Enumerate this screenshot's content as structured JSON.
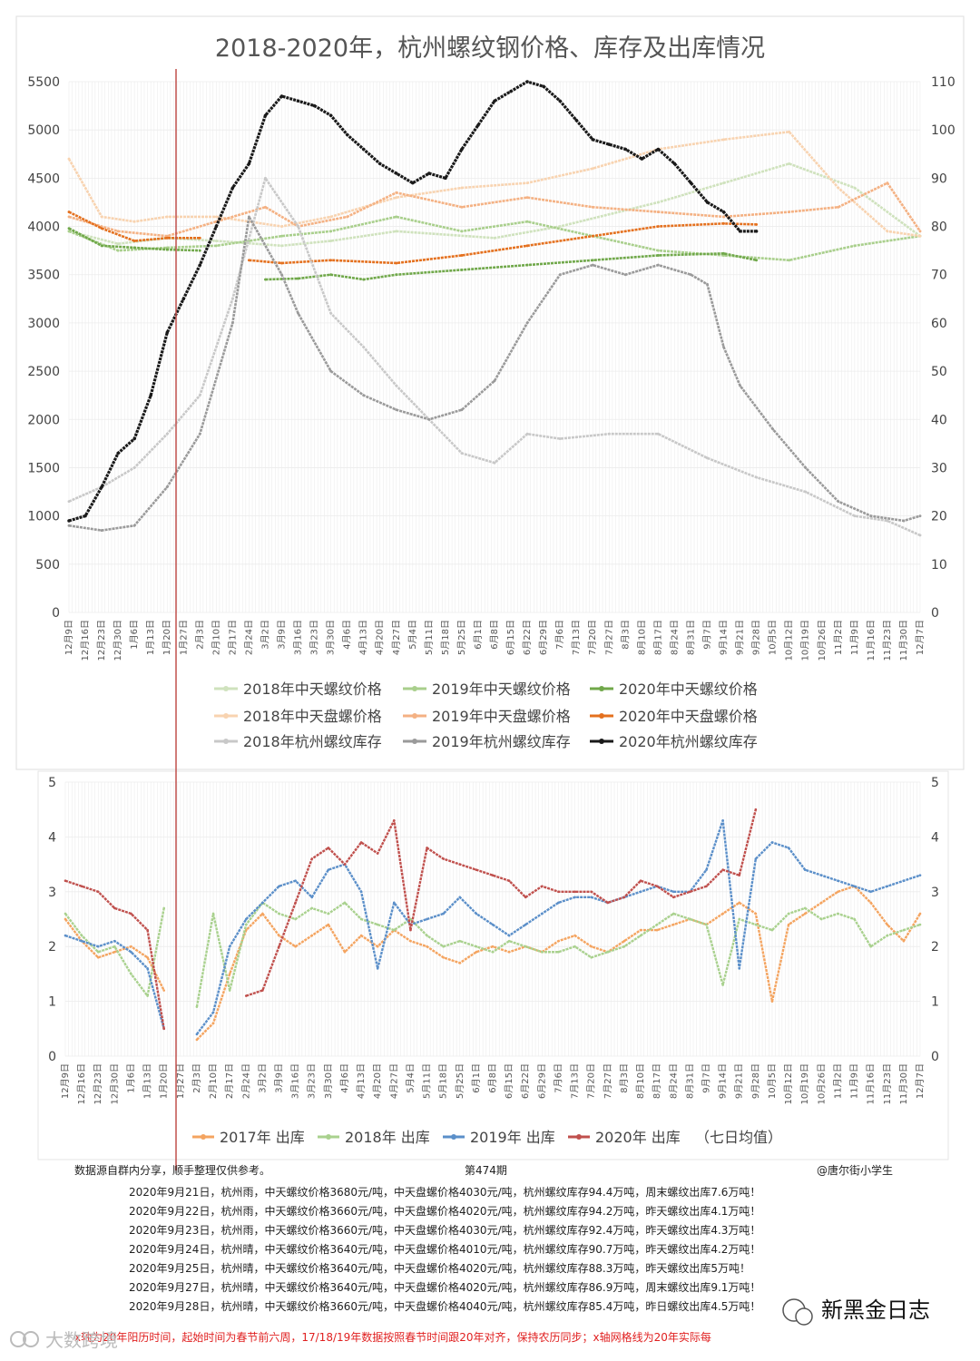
{
  "chart_data": [
    {
      "type": "line",
      "title": "2018-2020年，杭州螺纹钢价格、库存及出库情况",
      "x_tick_labels": [
        "12月9日",
        "12月16日",
        "12月23日",
        "12月30日",
        "1月6日",
        "1月13日",
        "1月20日",
        "1月27日",
        "2月3日",
        "2月10日",
        "2月17日",
        "2月24日",
        "3月2日",
        "3月9日",
        "3月16日",
        "3月23日",
        "3月30日",
        "4月6日",
        "4月13日",
        "4月20日",
        "4月27日",
        "5月4日",
        "5月11日",
        "5月18日",
        "5月25日",
        "6月1日",
        "6月8日",
        "6月15日",
        "6月22日",
        "6月29日",
        "7月6日",
        "7月13日",
        "7月20日",
        "7月27日",
        "8月3日",
        "8月10日",
        "8月17日",
        "8月24日",
        "8月31日",
        "9月7日",
        "9月14日",
        "9月21日",
        "9月28日",
        "10月5日",
        "10月12日",
        "10月19日",
        "10月26日",
        "11月2日",
        "11月9日",
        "11月16日",
        "11月23日",
        "11月30日",
        "12月7日"
      ],
      "ylim_left": [
        0,
        5500
      ],
      "y_ticks_left": [
        "0",
        "500",
        "1000",
        "1500",
        "2000",
        "2500",
        "3000",
        "3500",
        "4000",
        "4500",
        "5000",
        "5500"
      ],
      "ylim_right": [
        0,
        110
      ],
      "y_ticks_right": [
        "0",
        "10",
        "20",
        "30",
        "40",
        "50",
        "60",
        "70",
        "80",
        "90",
        "100",
        "110"
      ],
      "grid": true,
      "legend_position": "bottom",
      "series": [
        {
          "name": "2018年中天螺纹价格",
          "color": "#cfe2bd",
          "axis": "left",
          "x": [
            0,
            3,
            6,
            9,
            13,
            16,
            20,
            26,
            30,
            36,
            40,
            44,
            48,
            52
          ],
          "values": [
            3950,
            3820,
            3880,
            3850,
            3800,
            3850,
            3950,
            3880,
            4000,
            4250,
            4450,
            4650,
            4400,
            3900
          ]
        },
        {
          "name": "2019年中天螺纹价格",
          "color": "#a9cf8c",
          "axis": "left",
          "x": [
            0,
            3,
            6,
            9,
            11,
            13,
            16,
            20,
            24,
            28,
            32,
            36,
            40,
            44,
            48,
            52
          ],
          "values": [
            3950,
            3750,
            3780,
            3800,
            3850,
            3900,
            3950,
            4100,
            3950,
            4050,
            3900,
            3750,
            3700,
            3650,
            3800,
            3900
          ]
        },
        {
          "name": "2020年中天螺纹价格",
          "color": "#70a84a",
          "axis": "left",
          "x": [
            0,
            2,
            4,
            6,
            8,
            10,
            12,
            14,
            16,
            18,
            20,
            24,
            28,
            32,
            36,
            40,
            42
          ],
          "values": [
            3980,
            3800,
            3780,
            3760,
            3750,
            null,
            3450,
            3460,
            3500,
            3450,
            3500,
            3550,
            3600,
            3650,
            3700,
            3720,
            3650
          ]
        },
        {
          "name": "2018年中天盘螺价格",
          "color": "#f8d3b0",
          "axis": "left",
          "x": [
            0,
            2,
            4,
            6,
            9,
            13,
            16,
            20,
            24,
            28,
            32,
            36,
            40,
            44,
            47,
            50,
            52
          ],
          "values": [
            4700,
            4100,
            4050,
            4100,
            4100,
            4000,
            4100,
            4300,
            4400,
            4450,
            4600,
            4800,
            4900,
            4980,
            4400,
            3950,
            3900
          ]
        },
        {
          "name": "2019年中天盘螺价格",
          "color": "#f4b183",
          "axis": "left",
          "x": [
            0,
            3,
            6,
            9,
            12,
            14,
            17,
            20,
            24,
            28,
            32,
            36,
            40,
            44,
            47,
            50,
            52
          ],
          "values": [
            4100,
            3950,
            3900,
            4050,
            4200,
            4000,
            4100,
            4350,
            4200,
            4300,
            4200,
            4150,
            4100,
            4150,
            4200,
            4450,
            3950
          ]
        },
        {
          "name": "2020年中天盘螺价格",
          "color": "#e4701e",
          "axis": "left",
          "x": [
            0,
            2,
            4,
            6,
            8,
            10,
            11,
            13,
            16,
            20,
            24,
            28,
            32,
            36,
            40,
            42
          ],
          "values": [
            4150,
            3980,
            3850,
            3880,
            3880,
            null,
            3650,
            3620,
            3650,
            3620,
            3700,
            3800,
            3900,
            4000,
            4030,
            4020
          ]
        },
        {
          "name": "2018年杭州螺纹库存",
          "color": "#c8c8c8",
          "axis": "right",
          "x": [
            0,
            2,
            4,
            6,
            8,
            10,
            12,
            14,
            16,
            18,
            20,
            22,
            24,
            26,
            28,
            30,
            33,
            36,
            39,
            42,
            45,
            48,
            50,
            52
          ],
          "values": [
            23,
            26,
            30,
            37,
            45,
            65,
            90,
            80,
            62,
            55,
            47,
            40,
            33,
            31,
            37,
            36,
            37,
            37,
            32,
            28,
            25,
            20,
            19,
            16
          ]
        },
        {
          "name": "2019年杭州螺纹库存",
          "color": "#9a9a9a",
          "axis": "right",
          "x": [
            0,
            2,
            4,
            6,
            8,
            10,
            11,
            13,
            14,
            16,
            18,
            20,
            22,
            24,
            26,
            28,
            30,
            32,
            34,
            36,
            38,
            39,
            40,
            41,
            43,
            45,
            47,
            49,
            51,
            52
          ],
          "values": [
            18,
            17,
            18,
            26,
            37,
            60,
            82,
            70,
            62,
            50,
            45,
            42,
            40,
            42,
            48,
            60,
            70,
            72,
            70,
            72,
            70,
            68,
            55,
            47,
            38,
            30,
            23,
            20,
            19,
            20
          ]
        },
        {
          "name": "2020年杭州螺纹库存",
          "color": "#1a1a1a",
          "axis": "right",
          "x": [
            0,
            1,
            2,
            3,
            4,
            5,
            6,
            7,
            8,
            9,
            10,
            11,
            12,
            13,
            14,
            15,
            16,
            17,
            18,
            19,
            20,
            21,
            22,
            23,
            24,
            25,
            26,
            27,
            28,
            29,
            30,
            31,
            32,
            33,
            34,
            35,
            36,
            37,
            38,
            39,
            40,
            41,
            42
          ],
          "values": [
            19,
            20,
            26,
            33,
            36,
            45,
            58,
            65,
            72,
            80,
            88,
            93,
            103,
            107,
            106,
            105,
            103,
            99,
            96,
            93,
            91,
            89,
            91,
            90,
            96,
            101,
            106,
            108,
            110,
            109,
            106,
            102,
            98,
            97,
            96,
            94,
            96,
            93,
            89,
            85,
            83,
            79,
            79
          ]
        }
      ]
    },
    {
      "type": "line",
      "title": "",
      "x_tick_labels": [
        "12月9日",
        "12月16日",
        "12月23日",
        "12月30日",
        "1月6日",
        "1月13日",
        "1月20日",
        "1月27日",
        "2月3日",
        "2月10日",
        "2月17日",
        "2月24日",
        "3月2日",
        "3月9日",
        "3月16日",
        "3月23日",
        "3月30日",
        "4月6日",
        "4月13日",
        "4月20日",
        "4月27日",
        "5月4日",
        "5月11日",
        "5月18日",
        "5月25日",
        "6月1日",
        "6月8日",
        "6月15日",
        "6月22日",
        "6月29日",
        "7月6日",
        "7月13日",
        "7月20日",
        "7月27日",
        "8月3日",
        "8月10日",
        "8月17日",
        "8月24日",
        "8月31日",
        "9月7日",
        "9月14日",
        "9月21日",
        "9月28日",
        "10月5日",
        "10月12日",
        "10月19日",
        "10月26日",
        "11月2日",
        "11月9日",
        "11月16日",
        "11月23日",
        "11月30日",
        "12月7日"
      ],
      "ylim_left": [
        0,
        5
      ],
      "y_ticks_left": [
        "0",
        "1",
        "2",
        "3",
        "4",
        "5"
      ],
      "ylim_right": [
        0,
        5
      ],
      "y_ticks_right": [
        "0",
        "1",
        "2",
        "3",
        "4",
        "5"
      ],
      "grid": true,
      "legend_position": "bottom",
      "series": [
        {
          "name": "2017年 出库",
          "color": "#f4a460",
          "x": [
            0,
            1,
            2,
            3,
            4,
            5,
            6,
            7,
            8,
            9,
            10,
            11,
            12,
            13,
            14,
            15,
            16,
            17,
            18,
            19,
            20,
            21,
            22,
            23,
            24,
            25,
            26,
            27,
            28,
            29,
            30,
            31,
            32,
            33,
            34,
            35,
            36,
            37,
            38,
            39,
            40,
            41,
            42,
            43,
            44,
            45,
            46,
            47,
            48,
            49,
            50,
            51,
            52
          ],
          "values": [
            2.5,
            2.1,
            1.8,
            1.9,
            2.0,
            1.8,
            1.2,
            null,
            0.3,
            0.6,
            1.5,
            2.3,
            2.6,
            2.2,
            2.0,
            2.2,
            2.4,
            1.9,
            2.2,
            2.0,
            2.3,
            2.1,
            2.0,
            1.8,
            1.7,
            1.9,
            2.0,
            1.9,
            2.0,
            1.9,
            2.1,
            2.2,
            2.0,
            1.9,
            2.1,
            2.3,
            2.3,
            2.4,
            2.5,
            2.4,
            2.6,
            2.8,
            2.6,
            1.0,
            2.4,
            2.6,
            2.8,
            3.0,
            3.1,
            2.8,
            2.4,
            2.1,
            2.6
          ]
        },
        {
          "name": "2018年 出库",
          "color": "#a9d18e",
          "x": [
            0,
            1,
            2,
            3,
            4,
            5,
            6,
            7,
            8,
            9,
            10,
            11,
            12,
            13,
            14,
            15,
            16,
            17,
            18,
            19,
            20,
            21,
            22,
            23,
            24,
            25,
            26,
            27,
            28,
            29,
            30,
            31,
            32,
            33,
            34,
            35,
            36,
            37,
            38,
            39,
            40,
            41,
            42,
            43,
            44,
            45,
            46,
            47,
            48,
            49,
            50,
            51,
            52
          ],
          "values": [
            2.6,
            2.2,
            1.9,
            2.0,
            1.5,
            1.1,
            2.7,
            null,
            0.9,
            2.6,
            1.2,
            2.4,
            2.8,
            2.6,
            2.5,
            2.7,
            2.6,
            2.8,
            2.5,
            2.4,
            2.3,
            2.5,
            2.2,
            2.0,
            2.1,
            2.0,
            1.9,
            2.1,
            2.0,
            1.9,
            1.9,
            2.0,
            1.8,
            1.9,
            2.0,
            2.2,
            2.4,
            2.6,
            2.5,
            2.4,
            1.3,
            2.5,
            2.4,
            2.3,
            2.6,
            2.7,
            2.5,
            2.6,
            2.5,
            2.0,
            2.2,
            2.3,
            2.4
          ]
        },
        {
          "name": "2019年 出库",
          "color": "#5b8fc9",
          "x": [
            0,
            1,
            2,
            3,
            4,
            5,
            6,
            7,
            8,
            9,
            10,
            11,
            12,
            13,
            14,
            15,
            16,
            17,
            18,
            19,
            20,
            21,
            22,
            23,
            24,
            25,
            26,
            27,
            28,
            29,
            30,
            31,
            32,
            33,
            34,
            35,
            36,
            37,
            38,
            39,
            40,
            41,
            42,
            43,
            44,
            45,
            46,
            47,
            48,
            49,
            50,
            51,
            52
          ],
          "values": [
            2.2,
            2.1,
            2.0,
            2.1,
            1.9,
            1.6,
            0.5,
            null,
            0.4,
            0.8,
            2.0,
            2.5,
            2.8,
            3.1,
            3.2,
            2.9,
            3.4,
            3.5,
            3.0,
            1.6,
            2.8,
            2.4,
            2.5,
            2.6,
            2.9,
            2.6,
            2.4,
            2.2,
            2.4,
            2.6,
            2.8,
            2.9,
            2.9,
            2.8,
            2.9,
            3.0,
            3.1,
            3.0,
            3.0,
            3.4,
            4.3,
            1.6,
            3.6,
            3.9,
            3.8,
            3.4,
            3.3,
            3.2,
            3.1,
            3.0,
            3.1,
            3.2,
            3.3
          ]
        },
        {
          "name": "2020年 出库",
          "color": "#c0504d",
          "x": [
            0,
            1,
            2,
            3,
            4,
            5,
            6,
            7,
            8,
            9,
            10,
            11,
            12,
            13,
            14,
            15,
            16,
            17,
            18,
            19,
            20,
            21,
            22,
            23,
            24,
            25,
            26,
            27,
            28,
            29,
            30,
            31,
            32,
            33,
            34,
            35,
            36,
            37,
            38,
            39,
            40,
            41,
            42
          ],
          "values": [
            3.2,
            3.1,
            3.0,
            2.7,
            2.6,
            2.3,
            0.5,
            null,
            null,
            null,
            null,
            1.1,
            1.2,
            2.0,
            2.8,
            3.6,
            3.8,
            3.5,
            3.9,
            3.7,
            4.3,
            2.3,
            3.8,
            3.6,
            3.5,
            3.4,
            3.3,
            3.2,
            2.9,
            3.1,
            3.0,
            3.0,
            3.0,
            2.8,
            2.9,
            3.2,
            3.1,
            2.9,
            3.0,
            3.1,
            3.4,
            3.3,
            4.5
          ]
        }
      ]
    }
  ],
  "footer": {
    "source": "数据源自群内分享，顺手整理仅供参考。",
    "issue": "第474期",
    "author": "@唐尔街小学生"
  },
  "info_lines": [
    "2020年9月21日，杭州雨，中天螺纹价格3680元/吨，中天盘螺价格4030元/吨，杭州螺纹库存94.4万吨，周末螺纹出库7.6万吨！",
    "2020年9月22日，杭州雨，中天螺纹价格3660元/吨，中天盘螺价格4020元/吨，杭州螺纹库存94.2万吨，昨天螺纹出库4.1万吨！",
    "2020年9月23日，杭州雨，中天螺纹价格3660元/吨，中天盘螺价格4030元/吨，杭州螺纹库存92.4万吨，昨天螺纹出库4.3万吨！",
    "2020年9月24日，杭州晴，中天螺纹价格3640元/吨，中天盘螺价格4010元/吨，杭州螺纹库存90.7万吨，昨天螺纹出库4.2万吨！",
    "2020年9月25日，杭州晴，中天螺纹价格3640元/吨，中天盘螺价格4020元/吨，杭州螺纹库存88.3万吨，昨天螺纹出库5万吨！",
    "2020年9月27日，杭州晴，中天螺纹价格3640元/吨，中天盘螺价格4020元/吨，杭州螺纹库存86.9万吨，周末螺纹出库9.1万吨！",
    "2020年9月28日，杭州晴，中天螺纹价格3660元/吨，中天盘螺价格4040元/吨，杭州螺纹库存85.4万吨，昨日螺纹出库4.5万吨！"
  ],
  "note": "x轴为20年阳历时间，起始时间为春节前六周，17/18/19年数据按照春节时间跟20年对齐，保持农历同步；x轴网格线为20年实际每",
  "brand": "新黑金日志",
  "watermark": "大数跨境"
}
